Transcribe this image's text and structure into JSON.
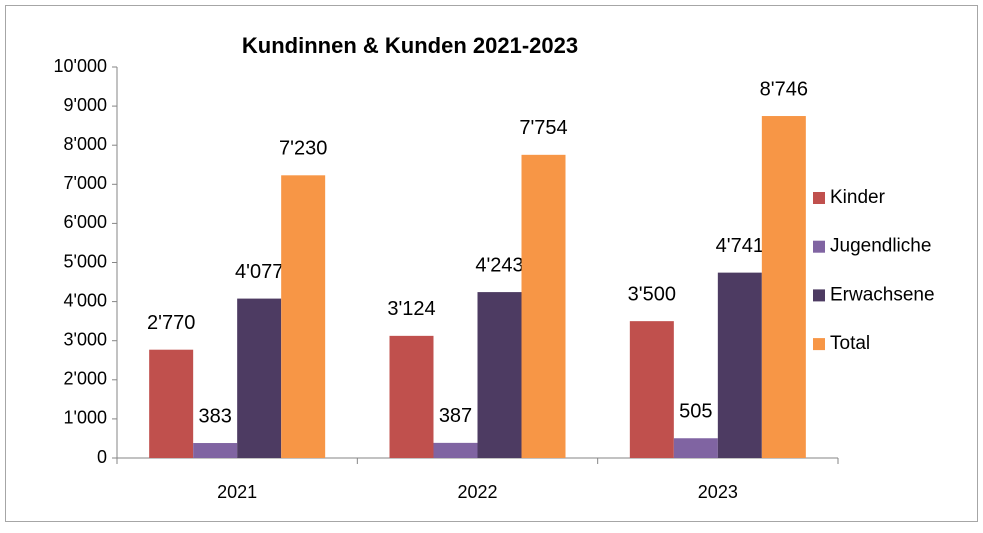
{
  "chart_data": {
    "type": "bar",
    "title": "Kundinnen & Kunden 2021-2023",
    "categories": [
      "2021",
      "2022",
      "2023"
    ],
    "series": [
      {
        "name": "Kinder",
        "color": "#c0504d",
        "values": [
          2770,
          3124,
          3500
        ],
        "value_labels": [
          "2'770",
          "3'124",
          "3'500"
        ]
      },
      {
        "name": "Jugendliche",
        "color": "#8064a2",
        "values": [
          383,
          387,
          505
        ],
        "value_labels": [
          "383",
          "387",
          "505"
        ]
      },
      {
        "name": "Erwachsene",
        "color": "#4d3b62",
        "values": [
          4077,
          4243,
          4741
        ],
        "value_labels": [
          "4'077",
          "4'243",
          "4'741"
        ]
      },
      {
        "name": "Total",
        "color": "#f79646",
        "values": [
          7230,
          7754,
          8746
        ],
        "value_labels": [
          "7'230",
          "7'754",
          "8'746"
        ]
      }
    ],
    "ylim": [
      0,
      10000
    ],
    "yticks": [
      0,
      {
        "value": 1000,
        "label": "1'000"
      },
      {
        "value": 2000,
        "label": "2'000"
      },
      {
        "value": 3000,
        "label": "3'000"
      },
      {
        "value": 4000,
        "label": "4'000"
      },
      {
        "value": 5000,
        "label": "5'000"
      },
      {
        "value": 6000,
        "label": "6'000"
      },
      {
        "value": 7000,
        "label": "7'000"
      },
      {
        "value": 8000,
        "label": "8'000"
      },
      {
        "value": 9000,
        "label": "9'000"
      },
      {
        "value": 10000,
        "label": "10'000"
      }
    ],
    "legend": "right"
  }
}
